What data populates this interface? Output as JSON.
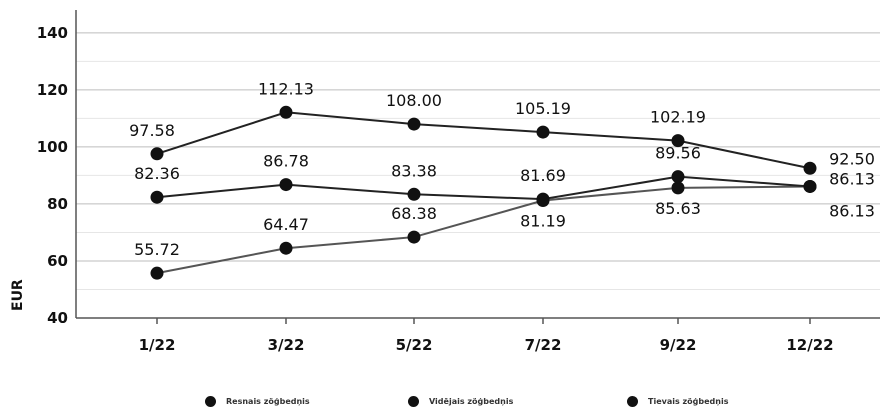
{
  "chart_data": {
    "type": "line",
    "categories": [
      "1/22",
      "3/22",
      "5/22",
      "7/22",
      "9/22",
      "12/22"
    ],
    "ylabel": "EUR",
    "xlabel": "",
    "ylim": [
      40,
      148
    ],
    "yticks": [
      40,
      60,
      80,
      100,
      120,
      140
    ],
    "grid": true,
    "legend_position": "bottom",
    "series": [
      {
        "name": "Resnais zöģbedņis",
        "values": [
          55.72,
          64.47,
          68.38,
          81.19,
          85.63,
          86.13
        ],
        "labels": [
          "55.72",
          "64.47",
          "68.38",
          "81.19",
          "85.63",
          "86.13"
        ],
        "color": "#555555"
      },
      {
        "name": "Vidējais zöģbedņis",
        "values": [
          82.36,
          86.78,
          83.38,
          81.69,
          89.56,
          86.13
        ],
        "labels": [
          "82.36",
          "86.78",
          "83.38",
          "81.69",
          "89.56",
          "86.13"
        ],
        "color": "#222222"
      },
      {
        "name": "Tievais zöģbedņis",
        "values": [
          97.58,
          112.13,
          108.0,
          105.19,
          102.19,
          92.5
        ],
        "labels": [
          "97.58",
          "112.13",
          "108.00",
          "105.19",
          "102.19",
          "92.50"
        ],
        "color": "#222222"
      }
    ]
  }
}
